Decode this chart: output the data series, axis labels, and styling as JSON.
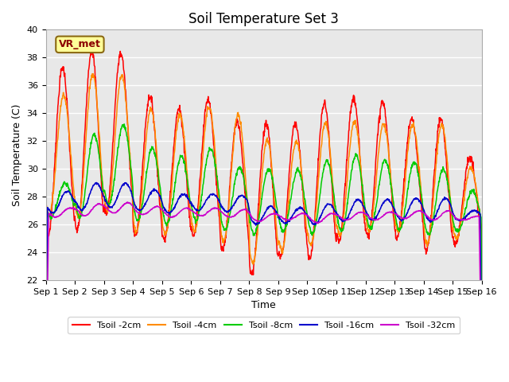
{
  "title": "Soil Temperature Set 3",
  "xlabel": "Time",
  "ylabel": "Soil Temperature (C)",
  "ylim": [
    22,
    40
  ],
  "xlim": [
    0,
    15
  ],
  "xtick_labels": [
    "Sep 1",
    "Sep 2",
    "Sep 3",
    "Sep 4",
    "Sep 5",
    "Sep 6",
    "Sep 7",
    "Sep 8",
    "Sep 9",
    "Sep 10",
    "Sep 11",
    "Sep 12",
    "Sep 13",
    "Sep 14",
    "Sep 15",
    "Sep 16"
  ],
  "ytick_values": [
    22,
    24,
    26,
    28,
    30,
    32,
    34,
    36,
    38,
    40
  ],
  "colors": {
    "Tsoil -2cm": "#ff0000",
    "Tsoil -4cm": "#ff8c00",
    "Tsoil -8cm": "#00cc00",
    "Tsoil -16cm": "#0000cc",
    "Tsoil -32cm": "#cc00cc"
  },
  "annotation_text": "VR_met",
  "bg_color": "#e8e8e8",
  "grid_color": "#ffffff",
  "title_fontsize": 12,
  "axis_fontsize": 9,
  "tick_fontsize": 8,
  "day_peaks_2cm": [
    37.3,
    38.5,
    38.3,
    35.2,
    34.3,
    35.0,
    33.4,
    33.3,
    33.3,
    34.7,
    35.1,
    34.8,
    33.6,
    33.6,
    30.8
  ],
  "day_troughs_2cm": [
    25.2,
    25.6,
    26.9,
    25.2,
    24.9,
    25.2,
    24.1,
    22.5,
    23.7,
    23.6,
    24.8,
    25.2,
    25.1,
    24.1,
    24.6
  ],
  "day_peaks_4cm": [
    35.3,
    36.8,
    36.7,
    34.3,
    33.9,
    34.5,
    33.9,
    32.1,
    32.0,
    33.3,
    33.4,
    33.2,
    33.2,
    33.2,
    30.1
  ],
  "day_troughs_4cm": [
    26.6,
    26.5,
    27.0,
    25.5,
    25.3,
    25.5,
    24.8,
    23.2,
    24.1,
    24.5,
    25.2,
    25.5,
    25.5,
    24.6,
    25.0
  ],
  "day_peaks_8cm": [
    29.0,
    32.5,
    33.2,
    31.5,
    30.9,
    31.5,
    30.1,
    30.0,
    29.9,
    30.6,
    31.0,
    30.6,
    30.5,
    30.0,
    28.4
  ],
  "day_troughs_8cm": [
    26.5,
    26.5,
    27.4,
    26.3,
    26.0,
    26.3,
    25.6,
    25.3,
    25.5,
    25.3,
    25.5,
    25.7,
    25.6,
    25.3,
    25.5
  ],
  "day_peaks_16cm": [
    28.4,
    29.0,
    29.0,
    28.5,
    28.2,
    28.2,
    28.1,
    27.3,
    27.2,
    27.5,
    27.8,
    27.8,
    27.9,
    27.9,
    27.0
  ],
  "day_troughs_16cm": [
    26.8,
    27.0,
    27.2,
    27.0,
    26.8,
    27.0,
    26.9,
    26.0,
    26.1,
    26.0,
    26.2,
    26.3,
    26.3,
    26.2,
    26.3
  ],
  "day_peaks_32cm": [
    27.2,
    27.5,
    27.6,
    27.3,
    27.2,
    27.2,
    27.1,
    26.8,
    26.8,
    26.8,
    26.9,
    26.9,
    27.0,
    27.0,
    26.6
  ],
  "day_troughs_32cm": [
    26.5,
    26.6,
    26.8,
    26.7,
    26.5,
    26.6,
    26.5,
    26.2,
    26.3,
    26.1,
    26.3,
    26.3,
    26.4,
    26.3,
    26.3
  ]
}
